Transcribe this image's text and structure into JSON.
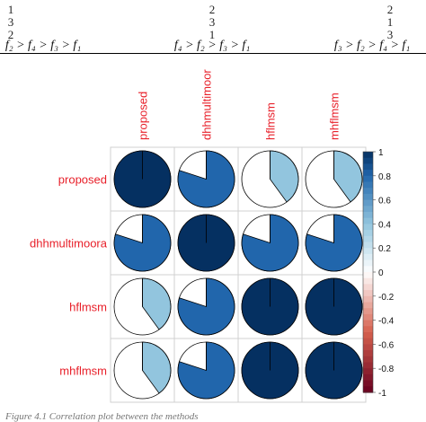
{
  "top_table": {
    "columns": [
      {
        "ranks": [
          "1",
          "3",
          "2"
        ],
        "ordering": "f₂ > f₄ > f₃ > f₁"
      },
      {
        "ranks": [
          "2",
          "3",
          "1"
        ],
        "ordering": "f₄ > f₂ > f₃ > f₁"
      },
      {
        "ranks": [
          "2",
          "1",
          "3"
        ],
        "ordering": "f₃ > f₂ > f₄ > f₁"
      }
    ]
  },
  "caption": "Figure 4.1 Correlation plot between the methods",
  "chart_data": {
    "type": "heatmap",
    "style": "corrplot-pie",
    "rows": [
      "proposed",
      "dhhmultimoora",
      "hflmsm",
      "mhflmsm"
    ],
    "cols": [
      "proposed",
      "dhhmultimoor",
      "hflmsm",
      "mhflmsm"
    ],
    "values": [
      [
        1.0,
        0.8,
        0.4,
        0.4
      ],
      [
        0.8,
        1.0,
        0.8,
        0.8
      ],
      [
        0.4,
        0.8,
        1.0,
        1.0
      ],
      [
        0.4,
        0.8,
        1.0,
        1.0
      ]
    ],
    "colorbar": {
      "range": [
        -1,
        1
      ],
      "tick_labels": [
        "1",
        "0.8",
        "0.6",
        "0.4",
        "0.2",
        "0",
        "-0.2",
        "-0.4",
        "-0.6",
        "-0.8",
        "-1"
      ]
    },
    "colors": {
      "label": "#e8202a",
      "neg_end": "#67001f",
      "neg_mid": "#d6604d",
      "neutral": "#ffffff",
      "pos_light": "#92c5de",
      "pos_mid": "#2166ac",
      "pos_end": "#053061"
    }
  }
}
